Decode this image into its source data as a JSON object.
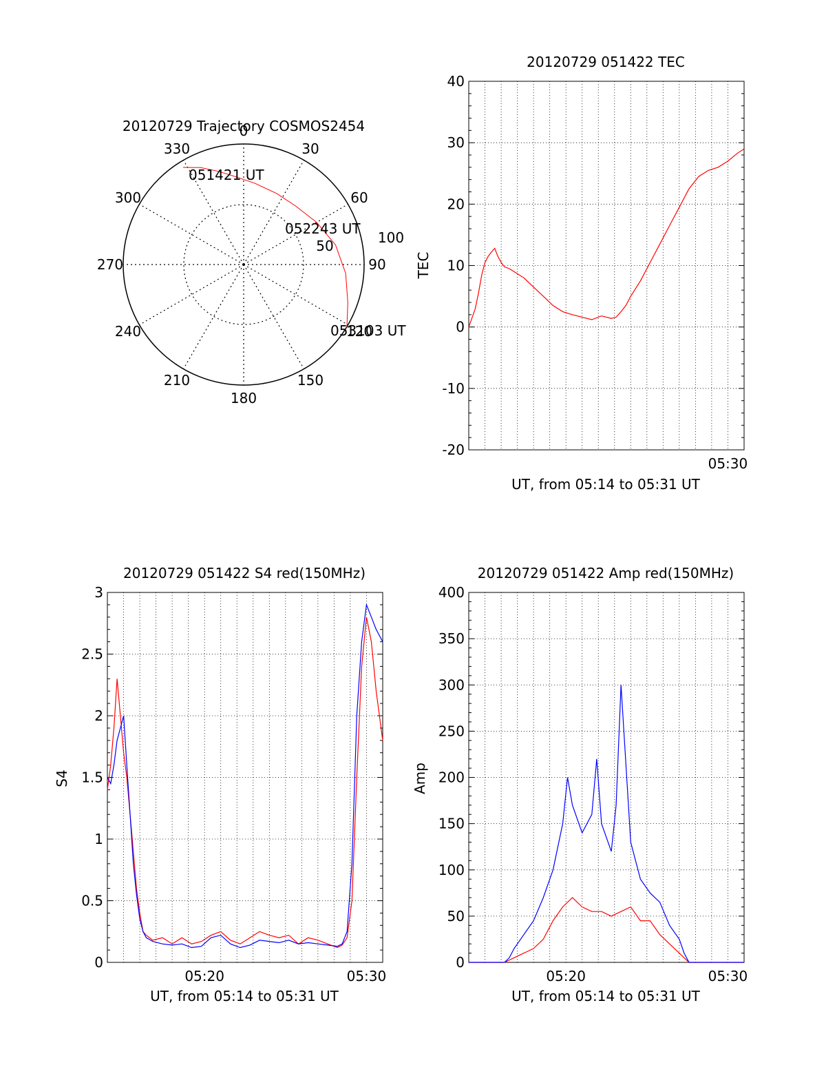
{
  "colors": {
    "red": "#ff0000",
    "blue": "#0000ff",
    "axis": "#000000",
    "grid": "#000000"
  },
  "chart_data": [
    {
      "id": "trajectory",
      "type": "polar",
      "title": "20120729 Trajectory COSMOS2454",
      "azimuth_labels": [
        "0",
        "30",
        "60",
        "90",
        "120",
        "150",
        "180",
        "210",
        "240",
        "270",
        "300",
        "330"
      ],
      "elevation_ring_labels": [
        "50",
        "100"
      ],
      "time_labels": {
        "start": "051421 UT",
        "mid": "052243 UT",
        "end": "053103 UT"
      },
      "track": {
        "color": "red",
        "points": [
          {
            "az": 328,
            "zen": 95
          },
          {
            "az": 336,
            "zen": 88
          },
          {
            "az": 345,
            "zen": 80
          },
          {
            "az": 355,
            "zen": 73
          },
          {
            "az": 8,
            "zen": 68
          },
          {
            "az": 25,
            "zen": 65
          },
          {
            "az": 42,
            "zen": 65
          },
          {
            "az": 60,
            "zen": 70
          },
          {
            "az": 78,
            "zen": 78
          },
          {
            "az": 95,
            "zen": 85
          },
          {
            "az": 110,
            "zen": 92
          },
          {
            "az": 121,
            "zen": 100
          }
        ]
      }
    },
    {
      "id": "tec",
      "type": "line",
      "title": "20120729 051422 TEC",
      "xlabel": "UT, from 05:14 to 05:31 UT",
      "ylabel": "TEC",
      "xlim": [
        5.2333,
        5.5167
      ],
      "ylim": [
        -20,
        40
      ],
      "yticks": [
        -20,
        -10,
        0,
        10,
        20,
        30,
        40
      ],
      "xtick_labels": [
        {
          "x": 5.5,
          "label": "05:30"
        }
      ],
      "grid": true,
      "series": [
        {
          "color": "red",
          "x": [
            5.2333,
            5.2367,
            5.24,
            5.2433,
            5.2467,
            5.25,
            5.2533,
            5.2567,
            5.26,
            5.2633,
            5.2667,
            5.27,
            5.275,
            5.28,
            5.29,
            5.3,
            5.31,
            5.32,
            5.33,
            5.34,
            5.35,
            5.36,
            5.37,
            5.38,
            5.385,
            5.39,
            5.395,
            5.4,
            5.41,
            5.42,
            5.43,
            5.44,
            5.45,
            5.46,
            5.47,
            5.48,
            5.49,
            5.5,
            5.51,
            5.5167
          ],
          "y": [
            0,
            1.5,
            3,
            5.5,
            8.5,
            10.5,
            11.5,
            12.2,
            12.8,
            11.5,
            10.5,
            9.8,
            9.5,
            9,
            8,
            6.5,
            5,
            3.5,
            2.5,
            2,
            1.6,
            1.2,
            1.8,
            1.4,
            1.6,
            2.5,
            3.5,
            5,
            7.5,
            10.5,
            13.5,
            16.5,
            19.5,
            22.5,
            24.5,
            25.5,
            26,
            27,
            28.3,
            29
          ]
        }
      ]
    },
    {
      "id": "s4",
      "type": "line",
      "title": "20120729 051422 S4 red(150MHz)",
      "xlabel": "UT, from 05:14 to 05:31 UT",
      "ylabel": "S4",
      "xlim": [
        5.2333,
        5.5167
      ],
      "ylim": [
        0,
        3
      ],
      "yticks": [
        0,
        0.5,
        1,
        1.5,
        2,
        2.5,
        3
      ],
      "ytick_labels": [
        "0",
        "0.5",
        "1",
        "1.5",
        "2",
        "2.5",
        "3"
      ],
      "xtick_labels": [
        {
          "x": 5.3333,
          "label": "05:20"
        },
        {
          "x": 5.5,
          "label": "05:30"
        }
      ],
      "grid": true,
      "series": [
        {
          "color": "red",
          "x": [
            5.2333,
            5.2367,
            5.24,
            5.2433,
            5.2467,
            5.25,
            5.2533,
            5.2567,
            5.26,
            5.2633,
            5.2667,
            5.27,
            5.2733,
            5.28,
            5.29,
            5.3,
            5.31,
            5.32,
            5.33,
            5.34,
            5.35,
            5.36,
            5.37,
            5.38,
            5.39,
            5.4,
            5.41,
            5.42,
            5.43,
            5.44,
            5.45,
            5.46,
            5.47,
            5.475,
            5.48,
            5.485,
            5.49,
            5.495,
            5.5,
            5.505,
            5.51,
            5.5167
          ],
          "y": [
            1.4,
            1.6,
            1.9,
            2.3,
            2.0,
            1.7,
            1.5,
            1.2,
            0.9,
            0.6,
            0.4,
            0.25,
            0.22,
            0.18,
            0.2,
            0.15,
            0.2,
            0.15,
            0.17,
            0.22,
            0.25,
            0.18,
            0.15,
            0.2,
            0.25,
            0.22,
            0.2,
            0.22,
            0.15,
            0.2,
            0.18,
            0.15,
            0.12,
            0.14,
            0.2,
            0.5,
            1.5,
            2.4,
            2.8,
            2.6,
            2.2,
            1.8
          ]
        },
        {
          "color": "blue",
          "x": [
            5.2333,
            5.2367,
            5.24,
            5.2433,
            5.2467,
            5.25,
            5.2533,
            5.2567,
            5.26,
            5.2633,
            5.2667,
            5.27,
            5.2733,
            5.28,
            5.29,
            5.3,
            5.31,
            5.32,
            5.33,
            5.34,
            5.35,
            5.36,
            5.37,
            5.38,
            5.39,
            5.4,
            5.41,
            5.42,
            5.43,
            5.44,
            5.45,
            5.46,
            5.47,
            5.475,
            5.48,
            5.485,
            5.49,
            5.495,
            5.5,
            5.505,
            5.51,
            5.5167
          ],
          "y": [
            1.5,
            1.45,
            1.6,
            1.8,
            1.9,
            2.0,
            1.6,
            1.2,
            0.8,
            0.55,
            0.35,
            0.25,
            0.2,
            0.17,
            0.15,
            0.14,
            0.15,
            0.12,
            0.13,
            0.2,
            0.22,
            0.15,
            0.12,
            0.14,
            0.18,
            0.17,
            0.16,
            0.18,
            0.15,
            0.16,
            0.15,
            0.14,
            0.13,
            0.15,
            0.25,
            0.8,
            2.0,
            2.6,
            2.9,
            2.8,
            2.7,
            2.6
          ]
        }
      ]
    },
    {
      "id": "amp",
      "type": "line",
      "title": "20120729 051422 Amp red(150MHz)",
      "xlabel": "UT, from 05:14 to 05:31 UT",
      "ylabel": "Amp",
      "xlim": [
        5.2333,
        5.5167
      ],
      "ylim": [
        0,
        400
      ],
      "yticks": [
        0,
        50,
        100,
        150,
        200,
        250,
        300,
        350,
        400
      ],
      "xtick_labels": [
        {
          "x": 5.3333,
          "label": "05:20"
        },
        {
          "x": 5.5,
          "label": "05:30"
        }
      ],
      "grid": true,
      "series": [
        {
          "color": "red",
          "x": [
            5.2333,
            5.25,
            5.27,
            5.28,
            5.29,
            5.3,
            5.31,
            5.32,
            5.33,
            5.34,
            5.35,
            5.36,
            5.37,
            5.38,
            5.39,
            5.4,
            5.41,
            5.42,
            5.43,
            5.44,
            5.45,
            5.455,
            5.46,
            5.47,
            5.5167
          ],
          "y": [
            0,
            0,
            0,
            5,
            10,
            15,
            25,
            45,
            60,
            70,
            60,
            55,
            55,
            50,
            55,
            60,
            45,
            45,
            30,
            20,
            10,
            5,
            0,
            0,
            0
          ]
        },
        {
          "color": "blue",
          "x": [
            5.2333,
            5.25,
            5.27,
            5.275,
            5.28,
            5.29,
            5.3,
            5.31,
            5.32,
            5.33,
            5.335,
            5.34,
            5.35,
            5.36,
            5.365,
            5.37,
            5.38,
            5.385,
            5.39,
            5.4,
            5.41,
            5.42,
            5.43,
            5.44,
            5.45,
            5.455,
            5.46,
            5.47,
            5.5167
          ],
          "y": [
            0,
            0,
            0,
            5,
            15,
            30,
            45,
            70,
            100,
            150,
            200,
            170,
            140,
            160,
            220,
            150,
            120,
            170,
            300,
            130,
            90,
            75,
            65,
            40,
            25,
            10,
            0,
            0,
            0
          ]
        }
      ]
    }
  ]
}
